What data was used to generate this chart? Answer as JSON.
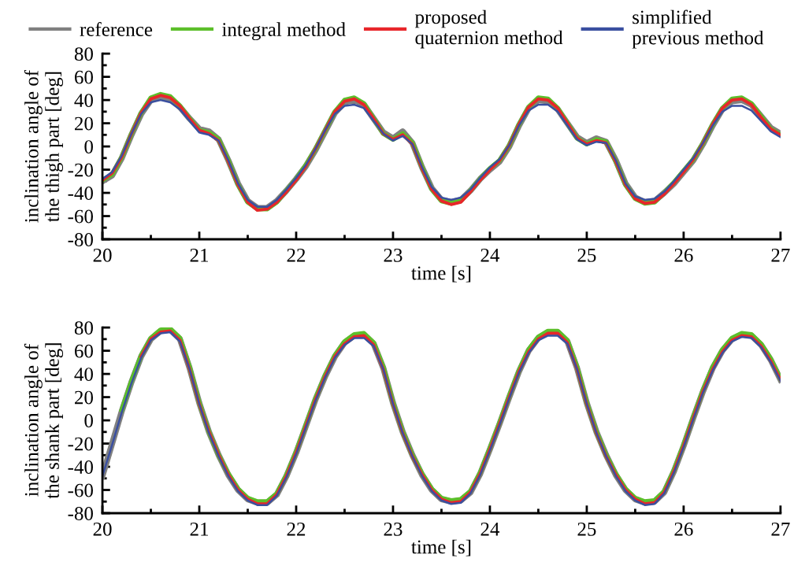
{
  "chart_data": [
    {
      "type": "line",
      "xlabel": "time [s]",
      "ylabel": "inclination angle of\nthe thigh part [deg]",
      "legend": "top",
      "grid": false,
      "xlim": [
        20,
        27
      ],
      "ylim": [
        -80,
        80
      ],
      "xticks": [
        20,
        {
          "value": 20.5,
          "label": null
        },
        21,
        {
          "value": 21.5,
          "label": null
        },
        22,
        {
          "value": 22.5,
          "label": null
        },
        23,
        {
          "value": 23.5,
          "label": null
        },
        24,
        {
          "value": 24.5,
          "label": null
        },
        25,
        {
          "value": 25.5,
          "label": null
        },
        26,
        {
          "value": 26.5,
          "label": null
        },
        27
      ],
      "yticks": [
        -80,
        {
          "value": -70,
          "label": null
        },
        -60,
        {
          "value": -50,
          "label": null
        },
        -40,
        {
          "value": -30,
          "label": null
        },
        -20,
        {
          "value": -10,
          "label": null
        },
        0,
        {
          "value": 10,
          "label": null
        },
        20,
        {
          "value": 30,
          "label": null
        },
        40,
        {
          "value": 50,
          "label": null
        },
        60,
        {
          "value": 70,
          "label": null
        },
        80
      ],
      "x": [
        20.0,
        20.1,
        20.2,
        20.3,
        20.4,
        20.5,
        20.6,
        20.7,
        20.8,
        20.9,
        21.0,
        21.1,
        21.2,
        21.3,
        21.4,
        21.5,
        21.6,
        21.7,
        21.8,
        21.9,
        22.0,
        22.1,
        22.2,
        22.3,
        22.4,
        22.5,
        22.6,
        22.7,
        22.8,
        22.9,
        23.0,
        23.1,
        23.2,
        23.3,
        23.4,
        23.5,
        23.6,
        23.7,
        23.8,
        23.9,
        24.0,
        24.1,
        24.2,
        24.3,
        24.4,
        24.5,
        24.6,
        24.7,
        24.8,
        24.9,
        25.0,
        25.1,
        25.2,
        25.3,
        25.4,
        25.5,
        25.6,
        25.7,
        25.8,
        25.9,
        26.0,
        26.1,
        26.2,
        26.3,
        26.4,
        26.5,
        26.6,
        26.7,
        26.8,
        26.9,
        27.0
      ],
      "series": [
        {
          "name": "reference",
          "color": "#808080",
          "values": [
            -30,
            -25,
            -10,
            10,
            28,
            40,
            43,
            41,
            34,
            24,
            15,
            13,
            6,
            -12,
            -32,
            -47,
            -53,
            -53,
            -47,
            -38,
            -28,
            -17,
            -3,
            13,
            29,
            38,
            40,
            36,
            24,
            12,
            7,
            13,
            3,
            -18,
            -36,
            -46,
            -48,
            -46,
            -38,
            -28,
            -20,
            -13,
            0,
            18,
            33,
            40,
            39,
            32,
            20,
            8,
            3,
            7,
            4,
            -12,
            -32,
            -44,
            -48,
            -47,
            -40,
            -32,
            -22,
            -12,
            2,
            18,
            32,
            39,
            40,
            36,
            26,
            16,
            11
          ]
        },
        {
          "name": "integral method",
          "color": "#5cbf2a",
          "values": [
            -29,
            -24,
            -9,
            11,
            29,
            42,
            45,
            43,
            35,
            24,
            14,
            12,
            6,
            -12,
            -33,
            -48,
            -54,
            -54,
            -48,
            -38,
            -28,
            -16,
            -2,
            14,
            30,
            40,
            42,
            37,
            24,
            11,
            6,
            11,
            3,
            -18,
            -37,
            -47,
            -49,
            -47,
            -38,
            -28,
            -19,
            -12,
            1,
            19,
            34,
            42,
            41,
            33,
            20,
            7,
            2,
            6,
            4,
            -13,
            -33,
            -45,
            -49,
            -48,
            -40,
            -31,
            -21,
            -11,
            3,
            19,
            33,
            41,
            42,
            37,
            26,
            15,
            10
          ]
        },
        {
          "name": "proposed\nquaternion method",
          "color": "#e8262a",
          "values": [
            -29,
            -23,
            -9,
            11,
            29,
            41,
            44,
            42,
            35,
            24,
            14,
            11,
            5,
            -13,
            -33,
            -48,
            -55,
            -54,
            -48,
            -39,
            -29,
            -17,
            -2,
            14,
            30,
            39,
            41,
            36,
            24,
            11,
            6,
            10,
            2,
            -19,
            -37,
            -47,
            -50,
            -48,
            -39,
            -29,
            -20,
            -12,
            1,
            19,
            34,
            41,
            40,
            33,
            20,
            7,
            2,
            5,
            3,
            -13,
            -33,
            -45,
            -49,
            -48,
            -41,
            -32,
            -22,
            -11,
            3,
            19,
            33,
            40,
            41,
            36,
            25,
            15,
            10
          ]
        },
        {
          "name": "simplified\nprevious method",
          "color": "#3a4fa0",
          "values": [
            -28,
            -22,
            -8,
            11,
            28,
            38,
            40,
            38,
            32,
            22,
            12,
            10,
            5,
            -12,
            -32,
            -46,
            -52,
            -52,
            -46,
            -37,
            -27,
            -16,
            -2,
            14,
            28,
            35,
            36,
            33,
            22,
            11,
            5,
            9,
            2,
            -18,
            -35,
            -44,
            -46,
            -44,
            -37,
            -27,
            -18,
            -11,
            1,
            18,
            31,
            36,
            36,
            30,
            18,
            6,
            1,
            4,
            3,
            -12,
            -32,
            -43,
            -46,
            -45,
            -39,
            -30,
            -20,
            -10,
            3,
            18,
            30,
            35,
            35,
            31,
            22,
            13,
            8
          ]
        }
      ]
    },
    {
      "type": "line",
      "xlabel": "time [s]",
      "ylabel": "inclination angle of\nthe shank part [deg]",
      "grid": false,
      "xlim": [
        20,
        27
      ],
      "ylim": [
        -80,
        80
      ],
      "xticks": [
        20,
        {
          "value": 20.5,
          "label": null
        },
        21,
        {
          "value": 21.5,
          "label": null
        },
        22,
        {
          "value": 22.5,
          "label": null
        },
        23,
        {
          "value": 23.5,
          "label": null
        },
        24,
        {
          "value": 24.5,
          "label": null
        },
        25,
        {
          "value": 25.5,
          "label": null
        },
        26,
        {
          "value": 26.5,
          "label": null
        },
        27
      ],
      "yticks": [
        -80,
        {
          "value": -70,
          "label": null
        },
        -60,
        {
          "value": -50,
          "label": null
        },
        -40,
        {
          "value": -30,
          "label": null
        },
        -20,
        {
          "value": -10,
          "label": null
        },
        0,
        {
          "value": 10,
          "label": null
        },
        20,
        {
          "value": 30,
          "label": null
        },
        40,
        {
          "value": 50,
          "label": null
        },
        60,
        {
          "value": 70,
          "label": null
        },
        80
      ],
      "x": [
        20.0,
        20.1,
        20.2,
        20.3,
        20.4,
        20.5,
        20.6,
        20.7,
        20.8,
        20.9,
        21.0,
        21.1,
        21.2,
        21.3,
        21.4,
        21.5,
        21.6,
        21.7,
        21.8,
        21.9,
        22.0,
        22.1,
        22.2,
        22.3,
        22.4,
        22.5,
        22.6,
        22.7,
        22.8,
        22.9,
        23.0,
        23.1,
        23.2,
        23.3,
        23.4,
        23.5,
        23.6,
        23.7,
        23.8,
        23.9,
        24.0,
        24.1,
        24.2,
        24.3,
        24.4,
        24.5,
        24.6,
        24.7,
        24.8,
        24.9,
        25.0,
        25.1,
        25.2,
        25.3,
        25.4,
        25.5,
        25.6,
        25.7,
        25.8,
        25.9,
        26.0,
        26.1,
        26.2,
        26.3,
        26.4,
        26.5,
        26.6,
        26.7,
        26.8,
        26.9,
        27.0
      ],
      "series": [
        {
          "color": "#808080",
          "values": [
            -48,
            -20,
            8,
            33,
            55,
            70,
            77,
            78,
            70,
            45,
            15,
            -10,
            -30,
            -47,
            -60,
            -68,
            -71,
            -71,
            -64,
            -48,
            -28,
            -5,
            18,
            38,
            55,
            67,
            73,
            74,
            66,
            45,
            15,
            -10,
            -30,
            -47,
            -60,
            -68,
            -70,
            -69,
            -62,
            -46,
            -25,
            -3,
            20,
            42,
            60,
            71,
            76,
            76,
            68,
            45,
            15,
            -10,
            -30,
            -47,
            -60,
            -68,
            -71,
            -70,
            -62,
            -44,
            -22,
            2,
            25,
            45,
            60,
            70,
            74,
            73,
            65,
            52,
            35
          ]
        },
        {
          "color": "#5cbf2a",
          "values": [
            null,
            null,
            9,
            34,
            56,
            71,
            78,
            79,
            71,
            46,
            15,
            -10,
            -30,
            -46,
            -59,
            -67,
            -70,
            -70,
            -63,
            -47,
            -27,
            -4,
            19,
            39,
            56,
            68,
            74,
            75,
            67,
            46,
            15,
            -10,
            -30,
            -46,
            -59,
            -67,
            -69,
            -68,
            -61,
            -45,
            -24,
            -2,
            21,
            43,
            61,
            72,
            77,
            77,
            69,
            46,
            15,
            -10,
            -30,
            -46,
            -59,
            -67,
            -70,
            -69,
            -61,
            -43,
            -21,
            3,
            26,
            46,
            61,
            71,
            75,
            74,
            66,
            53,
            36
          ]
        },
        {
          "color": "#e8262a",
          "values": [
            null,
            null,
            null,
            null,
            55,
            70,
            76,
            77,
            69,
            44,
            14,
            -10,
            -30,
            -47,
            -60,
            -68,
            -72,
            -72,
            -64,
            -48,
            -28,
            -5,
            18,
            38,
            55,
            66,
            72,
            73,
            65,
            44,
            14,
            -11,
            -31,
            -47,
            -60,
            -68,
            -71,
            -70,
            -62,
            -46,
            -25,
            -3,
            20,
            42,
            59,
            70,
            75,
            75,
            67,
            44,
            14,
            -11,
            -31,
            -47,
            -60,
            -68,
            -72,
            -71,
            -62,
            -44,
            -22,
            2,
            25,
            44,
            59,
            69,
            73,
            72,
            64,
            51,
            35
          ]
        },
        {
          "color": "#3a4fa0",
          "values": [
            -48,
            -21,
            7,
            32,
            54,
            69,
            75,
            76,
            68,
            44,
            14,
            -11,
            -31,
            -48,
            -61,
            -69,
            -73,
            -73,
            -65,
            -49,
            -29,
            -6,
            17,
            37,
            54,
            65,
            71,
            71,
            64,
            44,
            14,
            -11,
            -31,
            -48,
            -61,
            -69,
            -72,
            -71,
            -63,
            -47,
            -26,
            -4,
            19,
            41,
            58,
            69,
            73,
            73,
            66,
            44,
            14,
            -11,
            -31,
            -48,
            -61,
            -69,
            -73,
            -72,
            -63,
            -45,
            -23,
            1,
            24,
            43,
            58,
            68,
            72,
            71,
            63,
            50,
            34
          ]
        }
      ]
    }
  ]
}
